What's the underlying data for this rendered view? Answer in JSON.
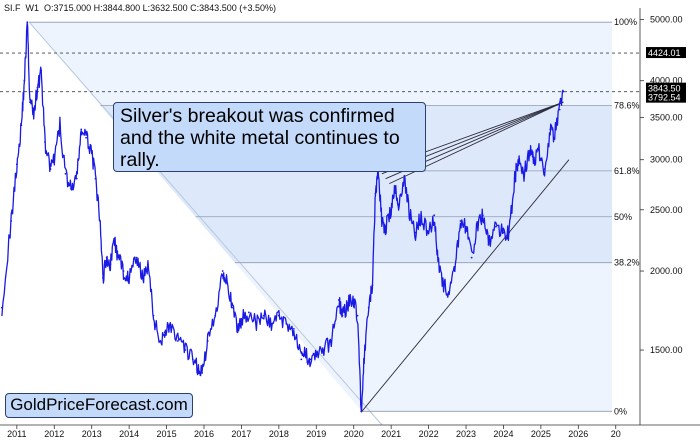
{
  "header": {
    "symbol": "SI.F",
    "interval": "W1",
    "ohlc": "O:3715.000 H:3844.800 L:3632.500 C:3843.500 (+3.50%)"
  },
  "annotation": "Silver's breakout was confirmed and the white metal continues to rally.",
  "watermark": "GoldPriceForecast.com",
  "colors": {
    "price": "#1a1ae6",
    "shade_light": "#eef4fd",
    "shade_mid": "#dde9fb",
    "callout_bg": "#c4dafa",
    "badge_bg": "#000000"
  },
  "chart_data": {
    "type": "line",
    "series": [
      {
        "name": "",
        "x": [
          2010.6,
          2010.85,
          2011.0,
          2011.12,
          2011.2,
          2011.28,
          2011.35,
          2011.45,
          2011.55,
          2011.65,
          2011.75,
          2011.9,
          2012.0,
          2012.15,
          2012.3,
          2012.45,
          2012.6,
          2012.72,
          2012.85,
          2013.0,
          2013.1,
          2013.22,
          2013.3,
          2013.4,
          2013.5,
          2013.6,
          2013.7,
          2013.85,
          2014.0,
          2014.2,
          2014.35,
          2014.5,
          2014.65,
          2014.8,
          2014.95,
          2015.1,
          2015.3,
          2015.5,
          2015.7,
          2015.85,
          2015.95,
          2016.1,
          2016.3,
          2016.5,
          2016.6,
          2016.75,
          2016.9,
          2017.0,
          2017.2,
          2017.4,
          2017.6,
          2017.8,
          2018.0,
          2018.2,
          2018.4,
          2018.6,
          2018.7,
          2018.85,
          2019.0,
          2019.2,
          2019.4,
          2019.6,
          2019.7,
          2019.85,
          2020.0,
          2020.1,
          2020.2,
          2020.28,
          2020.4,
          2020.5,
          2020.58,
          2020.65,
          2020.75,
          2020.85,
          2021.0,
          2021.1,
          2021.2,
          2021.35,
          2021.5,
          2021.65,
          2021.8,
          2022.0,
          2022.15,
          2022.25,
          2022.4,
          2022.55,
          2022.7,
          2022.85,
          2023.0,
          2023.15,
          2023.3,
          2023.45,
          2023.6,
          2023.8,
          2024.0,
          2024.15,
          2024.3,
          2024.4,
          2024.55,
          2024.7,
          2024.8,
          2024.95,
          2025.1,
          2025.25,
          2025.35,
          2025.5,
          2025.6
        ],
        "y": [
          1750,
          2400,
          2950,
          3400,
          4000,
          4950,
          3700,
          3550,
          3900,
          4150,
          3200,
          2900,
          3000,
          3400,
          2850,
          2700,
          2800,
          3350,
          3250,
          3100,
          2800,
          2400,
          1950,
          2100,
          2050,
          2250,
          2100,
          2000,
          1950,
          2100,
          1950,
          2050,
          1700,
          1550,
          1600,
          1650,
          1550,
          1500,
          1450,
          1400,
          1380,
          1550,
          1700,
          2000,
          1950,
          1750,
          1620,
          1680,
          1720,
          1650,
          1700,
          1650,
          1700,
          1650,
          1620,
          1450,
          1480,
          1450,
          1480,
          1500,
          1550,
          1800,
          1700,
          1780,
          1800,
          1700,
          1200,
          1450,
          1750,
          1900,
          2650,
          2900,
          2400,
          2350,
          2500,
          2700,
          2550,
          2800,
          2450,
          2300,
          2450,
          2300,
          2450,
          2100,
          1900,
          1850,
          2000,
          2400,
          2350,
          2100,
          2350,
          2450,
          2200,
          2350,
          2300,
          2300,
          2800,
          3000,
          2850,
          3100,
          3000,
          3100,
          2900,
          3350,
          3250,
          3600,
          3844
        ]
      }
    ],
    "y_scale": "log",
    "xlim": [
      2010.55,
      2026.9
    ],
    "ylim": [
      1150,
      5100
    ],
    "x_ticks": [
      "2011",
      "2012",
      "2013",
      "2014",
      "2015",
      "2016",
      "2017",
      "2018",
      "2019",
      "2020",
      "2021",
      "2022",
      "2023",
      "2024",
      "2025",
      "2026",
      "20"
    ],
    "y_ticks": [
      "5000.00",
      "4000.00",
      "3500.00",
      "3000.00",
      "2500.00",
      "2000.00",
      "1500.00"
    ],
    "y_tick_values": [
      5000,
      4000,
      3500,
      3000,
      2500,
      2000,
      1500
    ],
    "price_labels": [
      {
        "text": "4424.01",
        "value": 4424.01
      },
      {
        "text": "3843.50",
        "value": 3843.5
      },
      {
        "text": "3792.54",
        "value": 3792.54
      }
    ],
    "fib_levels": [
      {
        "label": "100%",
        "ratio": 1.0
      },
      {
        "label": "78.6%",
        "ratio": 0.786
      },
      {
        "label": "61.8%",
        "ratio": 0.618
      },
      {
        "label": "50%",
        "ratio": 0.5
      },
      {
        "label": "38.2%",
        "ratio": 0.382
      },
      {
        "label": "0%",
        "ratio": 0.0
      }
    ],
    "fib_range": {
      "high": 4950,
      "low": 1200,
      "high_x": 2011.33,
      "low_x": 2020.22
    },
    "trendlines": [
      {
        "x1": 2020.22,
        "y1": 1200,
        "x2": 2025.75,
        "y2": 3000
      },
      {
        "x1": 2020.65,
        "y1": 2900,
        "x2": 2025.6,
        "y2": 3700
      },
      {
        "x1": 2020.75,
        "y1": 2850,
        "x2": 2025.6,
        "y2": 3700
      },
      {
        "x1": 2020.85,
        "y1": 2800,
        "x2": 2025.6,
        "y2": 3700
      },
      {
        "x1": 2020.95,
        "y1": 2750,
        "x2": 2025.6,
        "y2": 3700
      }
    ],
    "grid": false,
    "legend": "none"
  }
}
